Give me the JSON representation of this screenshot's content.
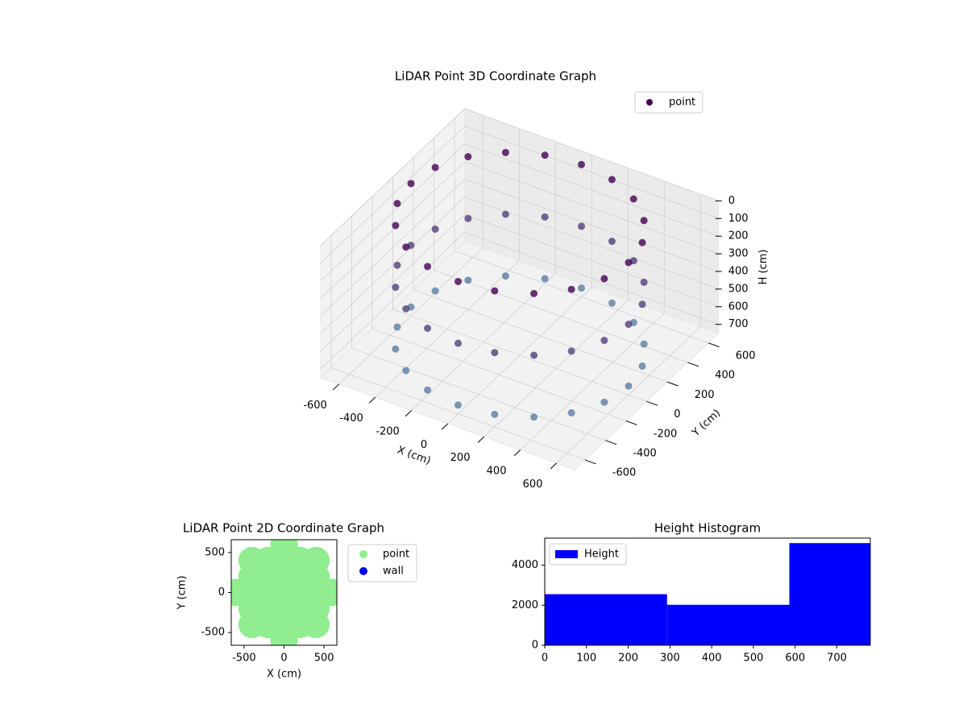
{
  "chart_data": [
    {
      "type": "scatter3d",
      "title": "LiDAR Point 3D Coordinate Graph",
      "xlabel": "X (cm)",
      "ylabel": "Y (cm)",
      "zlabel": "H (cm)",
      "xlim": [
        -700,
        700
      ],
      "ylim": [
        -700,
        700
      ],
      "zlim": [
        0,
        750
      ],
      "z_inverted": true,
      "xticks": [
        -600,
        -400,
        -200,
        0,
        200,
        400,
        600
      ],
      "yticks": [
        -600,
        -400,
        -200,
        0,
        200,
        400,
        600
      ],
      "zticks": [
        0,
        100,
        200,
        300,
        400,
        500,
        600,
        700
      ],
      "colormap": [
        "#440154",
        "#5d86a8"
      ],
      "legend": "upper right",
      "series": [
        {
          "name": "point",
          "color": "#440154",
          "x": [
            600,
            571,
            485,
            353,
            185,
            0,
            -185,
            -353,
            -485,
            -571,
            -600,
            -571,
            -485,
            -353,
            -185,
            0,
            185,
            353,
            485,
            571,
            600,
            571,
            485,
            353,
            185,
            0,
            -185,
            -353,
            -485,
            -571,
            -600,
            -571,
            -485,
            -353,
            -185,
            0,
            185,
            353,
            485,
            571,
            600,
            571,
            485,
            353,
            185,
            0,
            -185,
            -353,
            -485,
            -571,
            -600,
            -571,
            -485,
            -353,
            -185,
            0,
            185,
            353,
            485,
            571
          ],
          "y": [
            0,
            185,
            353,
            485,
            571,
            600,
            571,
            485,
            353,
            185,
            0,
            -185,
            -353,
            -485,
            -571,
            -600,
            -571,
            -485,
            -353,
            -185,
            0,
            185,
            353,
            485,
            571,
            600,
            571,
            485,
            353,
            185,
            0,
            -185,
            -353,
            -485,
            -571,
            -600,
            -571,
            -485,
            -353,
            -185,
            0,
            185,
            353,
            485,
            571,
            600,
            571,
            485,
            353,
            185,
            0,
            -185,
            -353,
            -485,
            -571,
            -600,
            -571,
            -485,
            -353,
            -185
          ],
          "z": [
            0,
            0,
            0,
            0,
            0,
            0,
            0,
            0,
            0,
            0,
            0,
            0,
            0,
            0,
            0,
            0,
            0,
            0,
            0,
            0,
            350,
            350,
            350,
            350,
            350,
            350,
            350,
            350,
            350,
            350,
            350,
            350,
            350,
            350,
            350,
            350,
            350,
            350,
            350,
            350,
            700,
            700,
            700,
            700,
            700,
            700,
            700,
            700,
            700,
            700,
            700,
            700,
            700,
            700,
            700,
            700,
            700,
            700,
            700,
            700
          ]
        }
      ]
    },
    {
      "type": "scatter",
      "title": "LiDAR Point 2D Coordinate Graph",
      "xlabel": "X (cm)",
      "ylabel": "Y (cm)",
      "xlim": [
        -660,
        660
      ],
      "ylim": [
        -660,
        660
      ],
      "xticks": [
        -500,
        0,
        500
      ],
      "yticks": [
        -500,
        0,
        500
      ],
      "legend": "outside right",
      "series": [
        {
          "name": "point",
          "color": "#90ee90",
          "x": [
            -600,
            -400,
            -400,
            -400,
            -400,
            -400,
            -200,
            -200,
            -200,
            -200,
            -200,
            0,
            0,
            0,
            0,
            0,
            0,
            0,
            200,
            200,
            200,
            200,
            200,
            400,
            400,
            400,
            400,
            400,
            600
          ],
          "y": [
            0,
            -400,
            -200,
            0,
            200,
            400,
            -400,
            -200,
            0,
            200,
            400,
            -600,
            -400,
            -200,
            0,
            200,
            400,
            600,
            -400,
            -200,
            0,
            200,
            400,
            -400,
            -200,
            0,
            200,
            400,
            0
          ]
        },
        {
          "name": "wall",
          "color": "#0000ff",
          "x": [],
          "y": []
        }
      ]
    },
    {
      "type": "histogram",
      "title": "Height Histogram",
      "bins": [
        0,
        293,
        586,
        780
      ],
      "xlim": [
        0,
        780
      ],
      "ylim": [
        0,
        5350
      ],
      "xticks": [
        0,
        100,
        200,
        300,
        400,
        500,
        600,
        700
      ],
      "yticks": [
        0,
        2000,
        4000
      ],
      "legend": "upper left",
      "series": [
        {
          "name": "Height",
          "color": "#0000ff",
          "values": [
            2550,
            2020,
            5100
          ]
        }
      ]
    }
  ]
}
